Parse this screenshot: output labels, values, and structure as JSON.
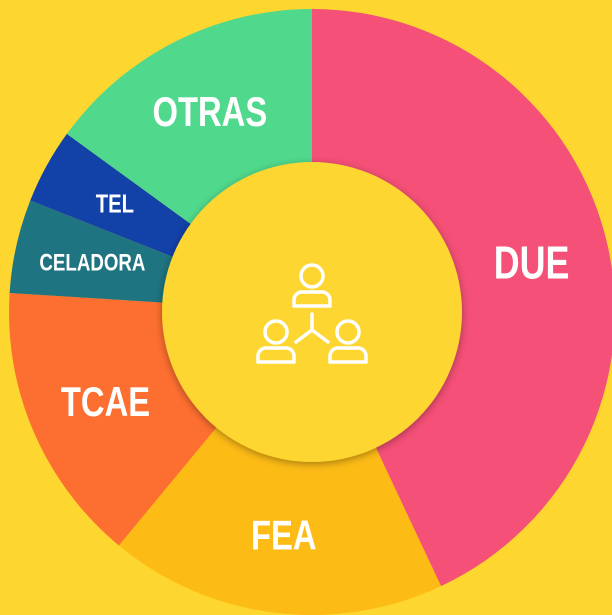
{
  "chart_data": {
    "type": "donut",
    "categories": [
      "DUE",
      "FEA",
      "TCAE",
      "CELADORA",
      "TEL",
      "OTRAS"
    ],
    "values": [
      43,
      18,
      15,
      5,
      4,
      15
    ],
    "colors": [
      "#f55077",
      "#fdbb16",
      "#fd6f30",
      "#1f7481",
      "#1241a8",
      "#50d98c"
    ]
  }
}
